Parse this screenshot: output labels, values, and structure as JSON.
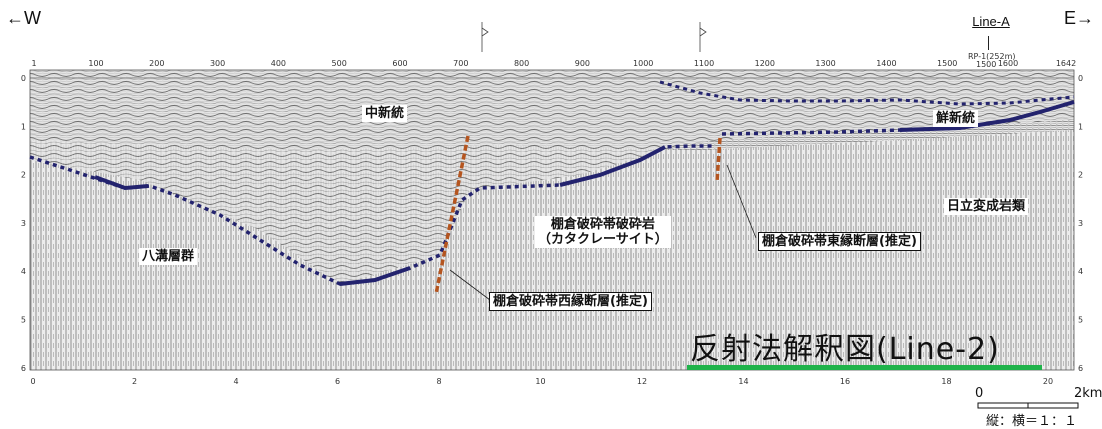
{
  "header": {
    "west_label": "←W",
    "east_label": "E→",
    "line_label": "Line-A",
    "rp_label": "RP-1(252m)",
    "rp_sub": "1500"
  },
  "cdp_ticks": [
    "1",
    "100",
    "200",
    "300",
    "400",
    "500",
    "600",
    "700",
    "800",
    "900",
    "1000",
    "1100",
    "1200",
    "1300",
    "1400",
    "1500",
    "1600",
    "1642"
  ],
  "distance_ticks": [
    "0",
    "2",
    "4",
    "6",
    "8",
    "10",
    "12",
    "14",
    "16",
    "18",
    "20"
  ],
  "depth_ticks": [
    "0",
    "1",
    "2",
    "3",
    "4",
    "5",
    "6"
  ],
  "labels": {
    "chushinto": "中新統",
    "senshinto": "鮮新統",
    "hitachi": "日立変成岩類",
    "yamizo": "八溝層群",
    "tanakura_rock_l1": "棚倉破砕帯破砕岩",
    "tanakura_rock_l2": "（カタクレーサイト）",
    "east_fault": "棚倉破砕帯東縁断層(推定)",
    "west_fault": "棚倉破砕帯西縁断層(推定)"
  },
  "title": "反射法解釈図(Line-2)",
  "scale_bar": {
    "zero": "0",
    "end": "2km",
    "ratio": "縦：横＝１：１"
  },
  "colors": {
    "horizon": "#23236e",
    "fault": "#b5551f",
    "title_underline": "#1fb34a"
  }
}
